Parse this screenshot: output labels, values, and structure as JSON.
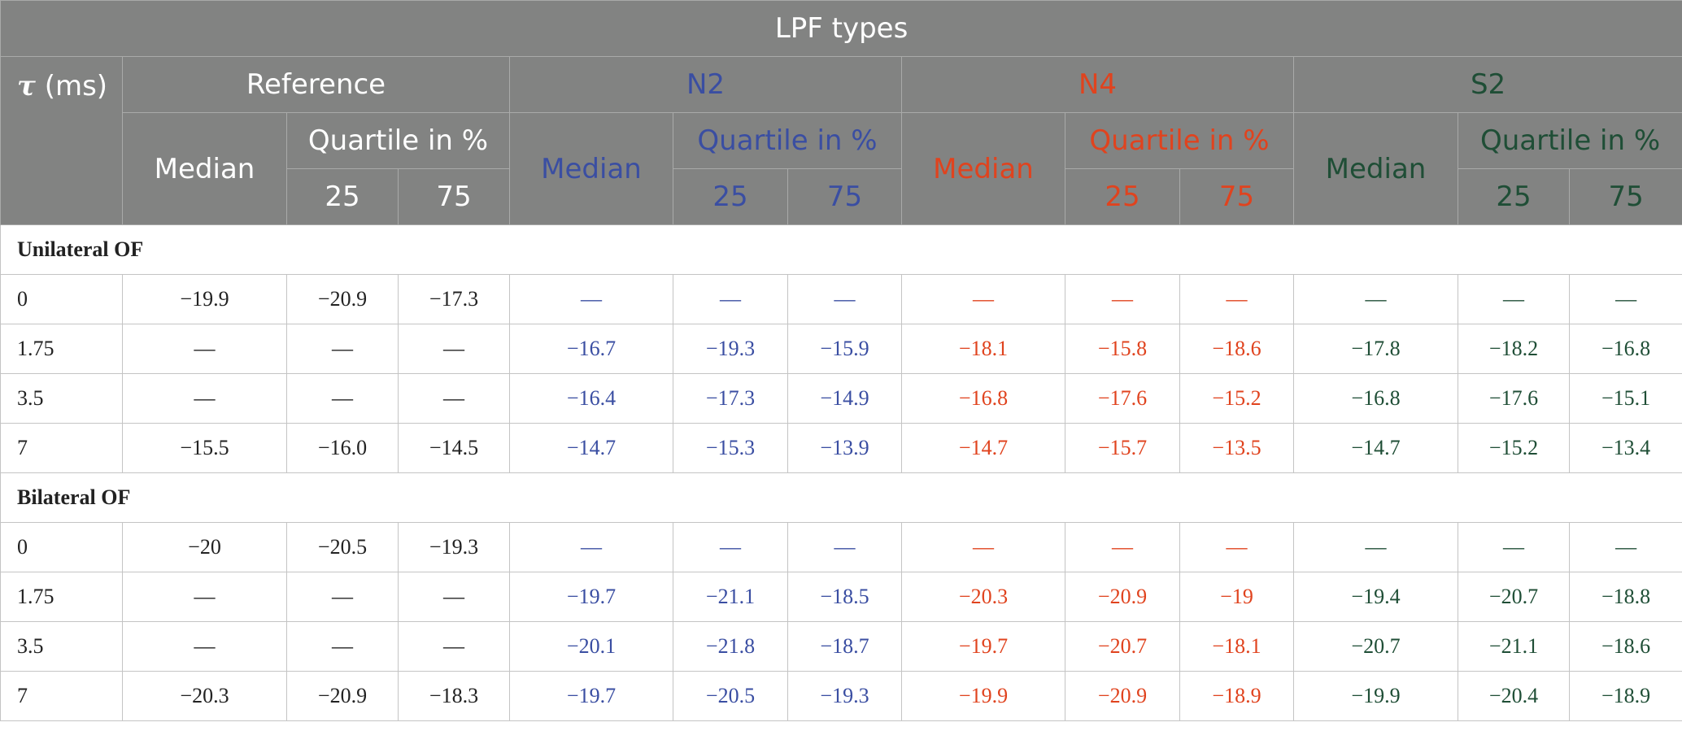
{
  "header": {
    "lpf_types": "LPF types",
    "tau_symbol": "τ",
    "tau_unit": " (ms)",
    "groups": {
      "reference": "Reference",
      "n2": "N2",
      "n4": "N4",
      "s2": "S2"
    },
    "median": "Median",
    "quartile": "Quartile in %",
    "q25": "25",
    "q75": "75"
  },
  "colors": {
    "header_bg": "#828382",
    "n2": "#3a4ea2",
    "n4": "#e0431e",
    "s2": "#1f4e36"
  },
  "sections": [
    {
      "title": "Unilateral OF",
      "rows": [
        {
          "tau": "0",
          "ref": [
            "−19.9",
            "−20.9",
            "−17.3"
          ],
          "n2": [
            "—",
            "—",
            "—"
          ],
          "n4": [
            "—",
            "—",
            "—"
          ],
          "s2": [
            "—",
            "—",
            "—"
          ]
        },
        {
          "tau": "1.75",
          "ref": [
            "—",
            "—",
            "—"
          ],
          "n2": [
            "−16.7",
            "−19.3",
            "−15.9"
          ],
          "n4": [
            "−18.1",
            "−15.8",
            "−18.6"
          ],
          "s2": [
            "−17.8",
            "−18.2",
            "−16.8"
          ]
        },
        {
          "tau": "3.5",
          "ref": [
            "—",
            "—",
            "—"
          ],
          "n2": [
            "−16.4",
            "−17.3",
            "−14.9"
          ],
          "n4": [
            "−16.8",
            "−17.6",
            "−15.2"
          ],
          "s2": [
            "−16.8",
            "−17.6",
            "−15.1"
          ]
        },
        {
          "tau": "7",
          "ref": [
            "−15.5",
            "−16.0",
            "−14.5"
          ],
          "n2": [
            "−14.7",
            "−15.3",
            "−13.9"
          ],
          "n4": [
            "−14.7",
            "−15.7",
            "−13.5"
          ],
          "s2": [
            "−14.7",
            "−15.2",
            "−13.4"
          ]
        }
      ]
    },
    {
      "title": "Bilateral OF",
      "rows": [
        {
          "tau": "0",
          "ref": [
            "−20",
            "−20.5",
            "−19.3"
          ],
          "n2": [
            "—",
            "—",
            "—"
          ],
          "n4": [
            "—",
            "—",
            "—"
          ],
          "s2": [
            "—",
            "—",
            "—"
          ]
        },
        {
          "tau": "1.75",
          "ref": [
            "—",
            "—",
            "—"
          ],
          "n2": [
            "−19.7",
            "−21.1",
            "−18.5"
          ],
          "n4": [
            "−20.3",
            "−20.9",
            "−19"
          ],
          "s2": [
            "−19.4",
            "−20.7",
            "−18.8"
          ]
        },
        {
          "tau": "3.5",
          "ref": [
            "—",
            "—",
            "—"
          ],
          "n2": [
            "−20.1",
            "−21.8",
            "−18.7"
          ],
          "n4": [
            "−19.7",
            "−20.7",
            "−18.1"
          ],
          "s2": [
            "−20.7",
            "−21.1",
            "−18.6"
          ]
        },
        {
          "tau": "7",
          "ref": [
            "−20.3",
            "−20.9",
            "−18.3"
          ],
          "n2": [
            "−19.7",
            "−20.5",
            "−19.3"
          ],
          "n4": [
            "−19.9",
            "−20.9",
            "−18.9"
          ],
          "s2": [
            "−19.9",
            "−20.4",
            "−18.9"
          ]
        }
      ]
    }
  ]
}
